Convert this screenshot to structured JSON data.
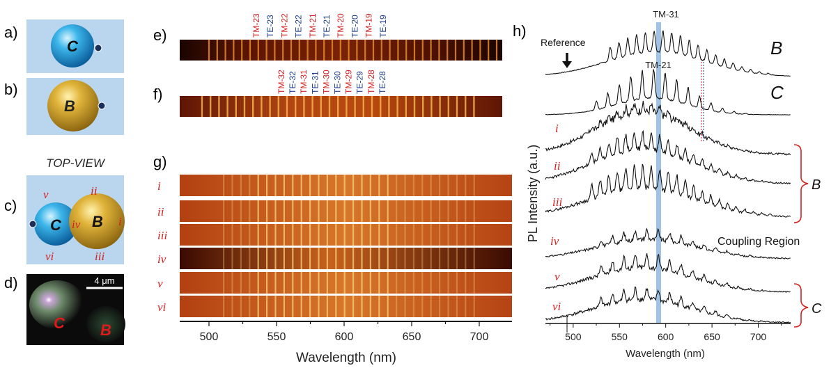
{
  "panels": {
    "a": {
      "label": "a)",
      "sphere_letter": "C"
    },
    "b": {
      "label": "b)",
      "sphere_letter": "B"
    },
    "c": {
      "label": "c)",
      "heading": "TOP-VIEW",
      "left_letter": "C",
      "right_letter": "B",
      "positions": [
        "v",
        "ii",
        "iv",
        "i",
        "vi",
        "iii"
      ]
    },
    "d": {
      "label": "d)",
      "scale_text": "4 μm",
      "letter_c": "C",
      "letter_b": "B"
    },
    "e": {
      "label": "e)",
      "modes": [
        "TM-23",
        "TE-23",
        "TM-22",
        "TE-22",
        "TM-21",
        "TE-21",
        "TM-20",
        "TE-20",
        "TM-19",
        "TE-19"
      ]
    },
    "f": {
      "label": "f)",
      "modes": [
        "TM-32",
        "TE-32",
        "TM-31",
        "TE-31",
        "TM-30",
        "TE-30",
        "TM-29",
        "TE-29",
        "TM-28",
        "TE-28"
      ]
    },
    "g": {
      "label": "g)",
      "rows": [
        "i",
        "ii",
        "iii",
        "iv",
        "v",
        "vi"
      ],
      "ticks": [
        "500",
        "550",
        "600",
        "650",
        "700"
      ],
      "xlabel": "Wavelength (nm)"
    },
    "h": {
      "label": "h)",
      "ylabel": "PL Intensity (a.u.)",
      "xlabel": "Wavelength (nm)",
      "ticks": [
        "500",
        "550",
        "600",
        "650",
        "700"
      ],
      "reference": "Reference",
      "mode_top": "TM-31",
      "mode_mid": "TM-21",
      "curve_b": "B",
      "curve_c": "C",
      "rows": [
        "i",
        "ii",
        "iii",
        "iv",
        "v",
        "vi"
      ],
      "bracket_b": "B",
      "bracket_c": "C",
      "coupling": "Coupling Region"
    }
  },
  "chart_data": {
    "type": "line",
    "xlabel": "Wavelength (nm)",
    "ylabel": "PL Intensity (a.u.)",
    "xlim": [
      470,
      735
    ],
    "highlight_band_nm": 587,
    "series": [
      {
        "name": "B"
      },
      {
        "name": "C"
      },
      {
        "name": "i"
      },
      {
        "name": "ii"
      },
      {
        "name": "iii"
      },
      {
        "name": "iv"
      },
      {
        "name": "v"
      },
      {
        "name": "vi"
      }
    ]
  },
  "colors": {
    "red_label": "#d42020",
    "blue_label": "#1c3d8c",
    "band": "#8fb8e0",
    "bg_panel": "#b9d6ee"
  }
}
